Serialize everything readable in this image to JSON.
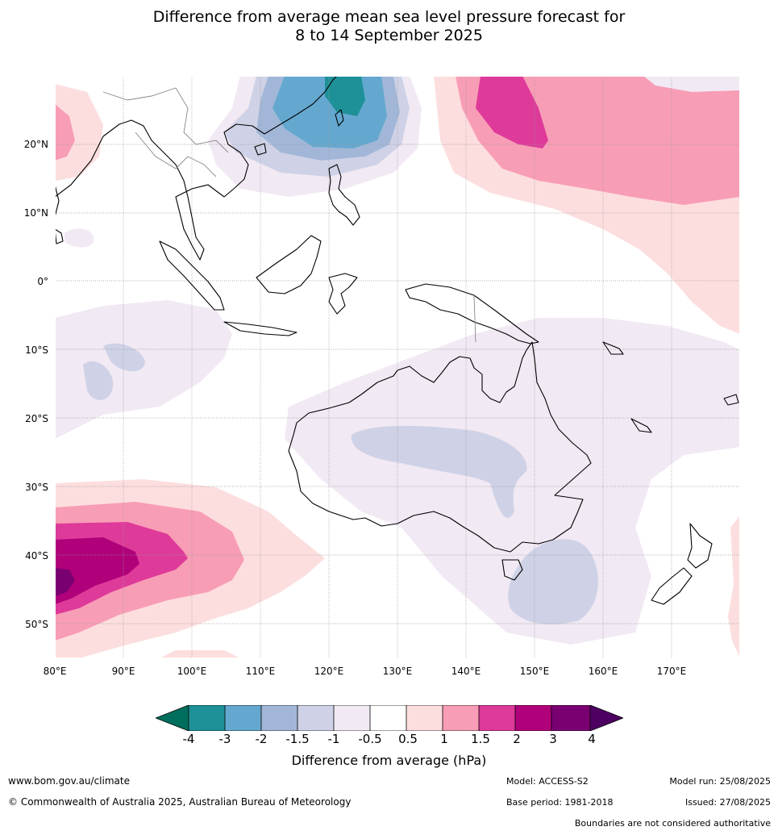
{
  "title_line1": "Difference from average mean sea level pressure forecast for",
  "title_line2": "8 to 14 September 2025",
  "lat_labels": [
    "20°N",
    "10°N",
    "0°",
    "10°S",
    "20°S",
    "30°S",
    "40°S",
    "50°S"
  ],
  "lon_labels": [
    "80°E",
    "90°E",
    "100°E",
    "110°E",
    "120°E",
    "130°E",
    "140°E",
    "150°E",
    "160°E",
    "170°E"
  ],
  "legend": {
    "title": "Difference from average (hPa)",
    "ticks": [
      "-4",
      "-3",
      "-2",
      "-1.5",
      "-1",
      "-0.5",
      "0.5",
      "1",
      "1.5",
      "2",
      "3",
      "4"
    ],
    "colors": [
      "#006e5c",
      "#1e9198",
      "#64a8cf",
      "#a2b7d8",
      "#cfd2e6",
      "#f1e9f3",
      "#ffffff",
      "#fddede",
      "#f89db6",
      "#de3a9a",
      "#b0007a",
      "#7a0072",
      "#4e0062"
    ]
  },
  "footer": {
    "url": "www.bom.gov.au/climate",
    "copyright": "© Commonwealth of Australia 2025, Australian Bureau of Meteorology",
    "model": "Model: ACCESS-S2",
    "base_period": "Base period: 1981-2018",
    "model_run": "Model run: 25/08/2025",
    "issued": "Issued: 27/08/2025",
    "disclaimer": "Boundaries are not considered authoritative"
  }
}
